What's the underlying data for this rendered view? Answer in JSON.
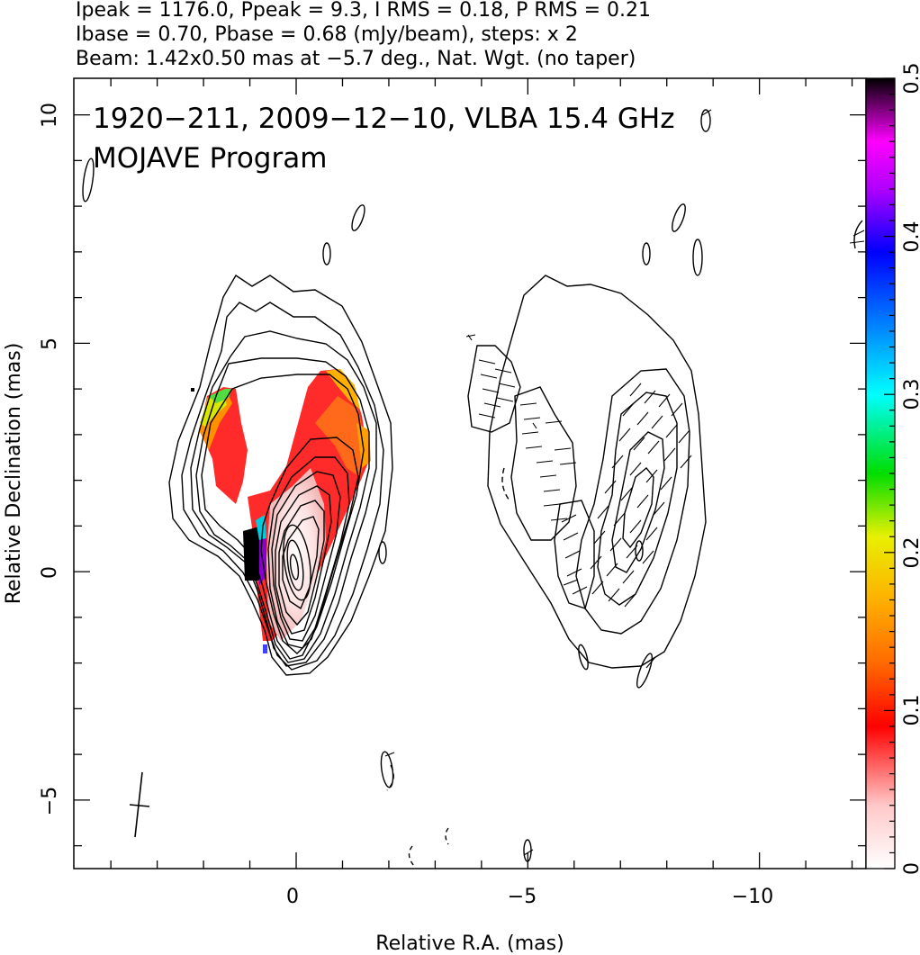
{
  "header": {
    "line1": "Ipeak = 1176.0, Ppeak = 9.3, I RMS = 0.18, P RMS = 0.21",
    "line2": "Ibase = 0.70, Pbase = 0.68 (mJy/beam), steps: x 2",
    "line3": "Beam: 1.42x0.50 mas at −5.7 deg., Nat. Wgt. (no taper)"
  },
  "chart_data": {
    "type": "heatmap",
    "title": "1920−211, 2009−12−10, VLBA 15.4 GHz",
    "subtitle": "MOJAVE Program",
    "xlabel": "Relative R.A. (mas)",
    "ylabel": "Relative Declination (mas)",
    "xlim": [
      4.8,
      -12.3
    ],
    "ylim": [
      -6.5,
      10.8
    ],
    "x_ticks": [
      0,
      -5,
      -10
    ],
    "x_tick_labels": [
      "0",
      "−5",
      "−10"
    ],
    "y_ticks": [
      -5,
      0,
      5,
      10
    ],
    "y_tick_labels": [
      "−5",
      "0",
      "5",
      "10"
    ],
    "colorbar": {
      "min": 0,
      "max": 0.5,
      "ticks": [
        0,
        0.1,
        0.2,
        0.3,
        0.4,
        0.5
      ],
      "tick_labels": [
        "0",
        "0.1",
        "0.2",
        "0.3",
        "0.4",
        "0.5"
      ],
      "colors": [
        "#ffffff",
        "#ff0000",
        "#ff8c00",
        "#ffff00",
        "#00dd00",
        "#00ffff",
        "#0000ff",
        "#ff00ff",
        "#000000"
      ]
    },
    "panels": [
      {
        "name": "total-intensity-with-fractional-polarization",
        "core": [
          0,
          0
        ],
        "contour_levels_mJy": [
          0.7,
          1.4,
          2.8,
          5.6,
          11.2,
          22.4,
          44.8,
          89.6,
          179.2,
          358.4,
          716.8
        ]
      },
      {
        "name": "polarized-intensity-with-evpa",
        "core": [
          -7.6,
          1.8
        ]
      }
    ]
  }
}
